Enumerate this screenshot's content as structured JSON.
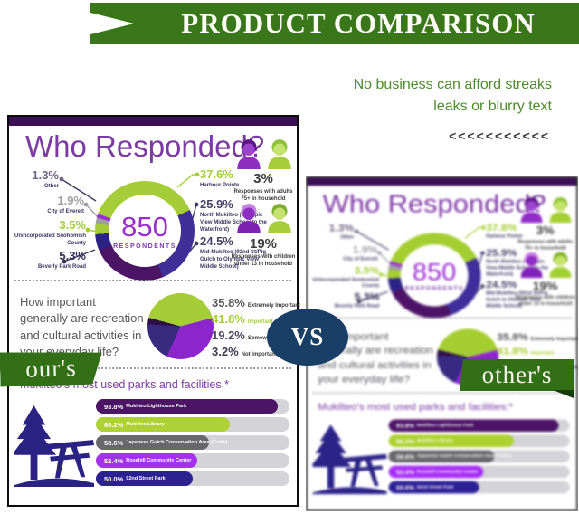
{
  "header": {
    "title": "PRODUCT COMPARISON",
    "tagline_line1": "No business can afford streaks",
    "tagline_line2": "leaks or blurry text",
    "chevrons": "<<<<<<<<<<<"
  },
  "versus": {
    "label": "VS",
    "left_ribbon": "our's",
    "right_ribbon": "other's"
  },
  "colors": {
    "banner_green": "#3a771b",
    "ribbon_green": "#336f16",
    "vs_navy": "#193f66",
    "title_purple": "#7c3ba2",
    "bright_purple": "#9a2fd0",
    "lime_green": "#a5cd37",
    "indigo": "#3f2f96",
    "dark_purple": "#4b1465",
    "navy": "#2b2383",
    "gray_segment": "#9e9ea4"
  },
  "infographic": {
    "title": "Who Responded?",
    "respondents_count": "850",
    "respondents_label": "RESPONDENTS",
    "donut_left": [
      {
        "pct": "1.3%",
        "caption": "Other",
        "color": "#6f6483"
      },
      {
        "pct": "1.9%",
        "caption": "City of Everett",
        "color": "#9fa0a6"
      },
      {
        "pct": "3.5%",
        "caption": "Unincorporated Snohomish County",
        "color": "#a5cd37"
      },
      {
        "pct": "5.3%",
        "caption": "Beverly Park Road",
        "color": "#353058"
      }
    ],
    "donut_right": [
      {
        "pct": "37.6%",
        "caption": "Harbour Pointe",
        "color": "#a5cd37"
      },
      {
        "pct": "25.9%",
        "caption": "North Mukilteo (Olympic View Middle School to the Waterfront)",
        "color": "#474166"
      },
      {
        "pct": "24.5%",
        "caption": "Mid-Mukilteo (92nd St/Pig Gulch to Olympic View Middle School)",
        "color": "#474166"
      }
    ],
    "household": [
      {
        "pct": "3%",
        "caption": "Responses with adults 75+ in household"
      },
      {
        "pct": "19%",
        "caption": "Responses with children under 13 in household"
      }
    ],
    "importance_question": "How important generally are recreation and cultural activities in your everyday life?",
    "importance_rows": [
      {
        "pct": "35.8%",
        "label": "Extremely Important",
        "color": "#55565a"
      },
      {
        "pct": "41.8%",
        "label": "Important",
        "color": "#a5cd37"
      },
      {
        "pct": "19.2%",
        "label": "Somewhat Important",
        "color": "#4a4660"
      },
      {
        "pct": "3.2%",
        "label": "Not Important",
        "color": "#3f3b52"
      }
    ],
    "parks_title": "Mukilteo's most used parks and facilities:*"
  },
  "chart_data": [
    {
      "type": "pie",
      "variant": "donut",
      "title": "Who Responded?",
      "center_value": 850,
      "center_label": "RESPONDENTS",
      "start_angle": 290,
      "segments": [
        {
          "label": "Harbour Pointe",
          "value": 37.6,
          "color": "#a5cd37"
        },
        {
          "label": "North Mukilteo (Olympic View Middle School to the Waterfront)",
          "value": 25.9,
          "color": "#3f2f96"
        },
        {
          "label": "Mid-Mukilteo (92nd St/Pig Gulch to Olympic View Middle School)",
          "value": 24.5,
          "color": "#4b1465"
        },
        {
          "label": "Beverly Park Road",
          "value": 5.3,
          "color": "#2b2383"
        },
        {
          "label": "Unincorporated Snohomish County",
          "value": 3.5,
          "color": "#a5cd37"
        },
        {
          "label": "City of Everett",
          "value": 1.9,
          "color": "#9e9ea4"
        },
        {
          "label": "Other",
          "value": 1.3,
          "color": "#9a2fd0"
        }
      ]
    },
    {
      "type": "pie",
      "title": "How important generally are recreation and cultural activities in your everyday life?",
      "start_angle": 285,
      "segments": [
        {
          "label": "Important",
          "value": 41.8,
          "color": "#a5cd37"
        },
        {
          "label": "Extremely Important",
          "value": 35.8,
          "color": "#8c25cc"
        },
        {
          "label": "Somewhat Important",
          "value": 19.2,
          "color": "#382a7e"
        },
        {
          "label": "Not Important",
          "value": 3.2,
          "color": "#2d0f45"
        }
      ]
    },
    {
      "type": "bar",
      "title": "Mukilteo's most used parks and facilities:*",
      "categories": [
        "Mukilteo Lighthouse Park",
        "Mukilteo Library",
        "Japanese Gulch Conservation Area (Trails)",
        "Rosehill Community Center",
        "92nd Street Park"
      ],
      "values": [
        93.8,
        69.2,
        58.6,
        52.4,
        50.0
      ],
      "value_labels": [
        "93.8%",
        "69.2%",
        "58.6%",
        "52.4%",
        "50.0%"
      ],
      "colors": [
        "#4b1465",
        "#aed136",
        "#68686c",
        "#a431ee",
        "#2b2191"
      ],
      "xlim": [
        0,
        100
      ]
    }
  ]
}
